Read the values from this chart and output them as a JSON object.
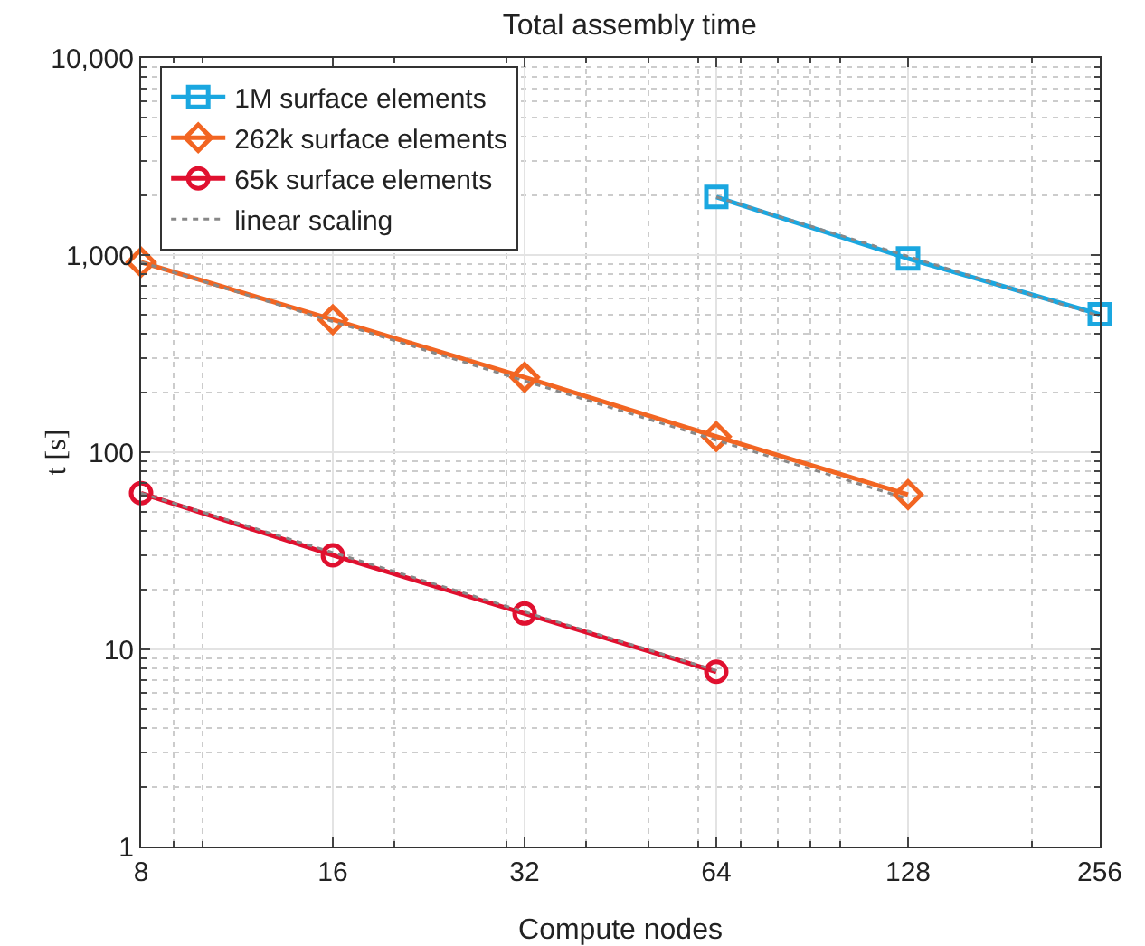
{
  "chart_data": {
    "type": "line",
    "title": "Total assembly time",
    "xlabel": "Compute nodes",
    "ylabel": "t [s]",
    "log": "xy",
    "grid": true,
    "legend": "top left",
    "xlim": [
      8,
      256
    ],
    "xticks": [
      8,
      16,
      32,
      64,
      128,
      256
    ],
    "ylim": [
      1,
      10000
    ],
    "yticks": [
      1,
      10,
      100,
      {
        "value": 1000,
        "label": "1,000"
      },
      {
        "value": 10000,
        "label": "10,000"
      }
    ],
    "series": [
      {
        "name": "1M surface elements",
        "color": "#1aa7e0",
        "marker": "square",
        "line_style": "solid",
        "x": [
          64,
          128,
          256
        ],
        "values": [
          1970,
          960,
          500
        ]
      },
      {
        "name": "262k surface elements",
        "color": "#f26522",
        "marker": "diamond",
        "line_style": "solid",
        "x": [
          8,
          16,
          32,
          64,
          128
        ],
        "values": [
          920,
          470,
          240,
          120,
          61
        ]
      },
      {
        "name": "65k surface elements",
        "color": "#e0102f",
        "marker": "circle",
        "line_style": "solid",
        "x": [
          8,
          16,
          32,
          64
        ],
        "values": [
          62,
          30,
          15.2,
          7.7
        ]
      },
      {
        "name": "linear scaling",
        "color": "#888888",
        "marker": "none",
        "line_style": "dotted",
        "x": [
          64,
          128,
          256
        ],
        "values": [
          1970,
          985,
          490
        ]
      },
      {
        "color": "#888888",
        "marker": "none",
        "line_style": "dotted",
        "x": [
          8,
          16,
          32,
          64,
          128
        ],
        "values": [
          920,
          460,
          230,
          115,
          58
        ]
      },
      {
        "color": "#888888",
        "marker": "none",
        "line_style": "dotted",
        "x": [
          8,
          16,
          32,
          64
        ],
        "values": [
          62,
          31,
          15.5,
          7.8
        ]
      }
    ]
  }
}
